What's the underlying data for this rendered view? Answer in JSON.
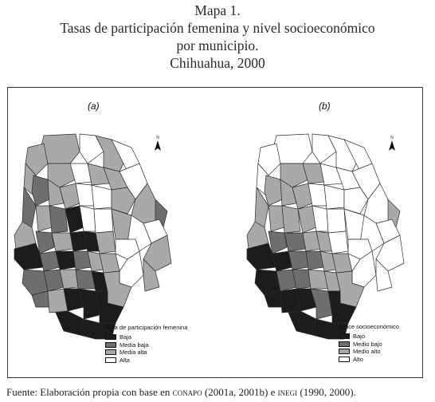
{
  "title": {
    "line1": "Mapa 1.",
    "line2": "Tasas de participación femenina y nivel socioeconómico",
    "line3": "por municipio.",
    "line4": "Chihuahua, 2000"
  },
  "maps": [
    {
      "panel_label": "(a)",
      "legend_title": "Tasa de participación femenina",
      "legend": [
        {
          "label": "Baja",
          "color": "#1c1c1c"
        },
        {
          "label": "Media baja",
          "color": "#6e6e6e"
        },
        {
          "label": "Media alta",
          "color": "#a9a9a9"
        },
        {
          "label": "Alta",
          "color": "#ffffff"
        }
      ]
    },
    {
      "panel_label": "(b)",
      "legend_title": "Índice socioeconómico",
      "legend": [
        {
          "label": "Bajo",
          "color": "#1c1c1c"
        },
        {
          "label": "Medio bajo",
          "color": "#6e6e6e"
        },
        {
          "label": "Medio alto",
          "color": "#a9a9a9"
        },
        {
          "label": "Alto",
          "color": "#ffffff"
        }
      ]
    }
  ],
  "north_arrow": {
    "letter": "N",
    "icon": "north-arrow-icon"
  },
  "source": {
    "prefix": "Fuente:  Elaboración propia con base en ",
    "org1": "conapo",
    "mid": " (2001a, 2001b) e ",
    "org2": "inegi",
    "suffix": " (1990, 2000)."
  }
}
